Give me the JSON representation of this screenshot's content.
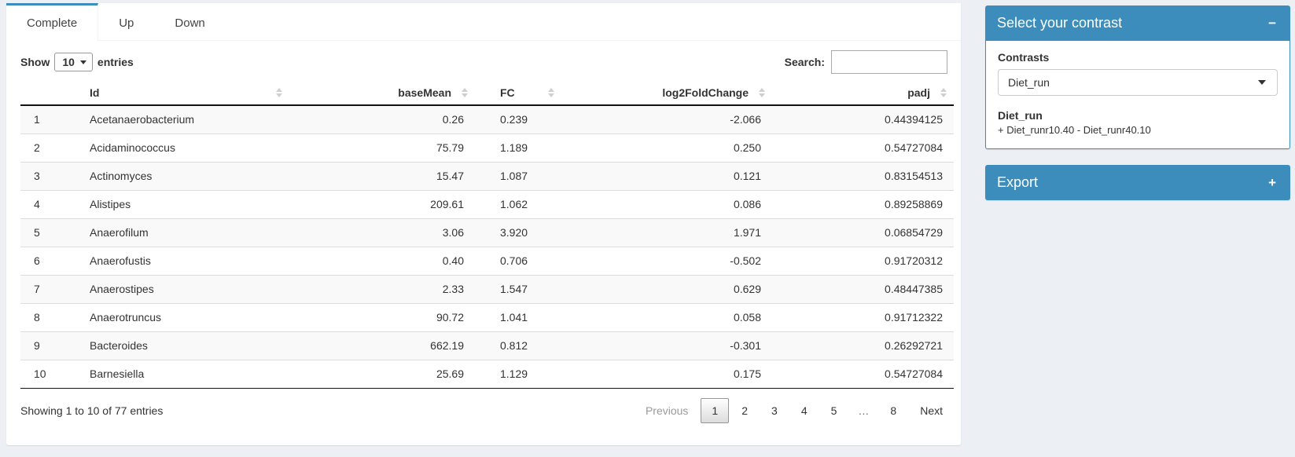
{
  "tabs": [
    {
      "label": "Complete",
      "active": true
    },
    {
      "label": "Up",
      "active": false
    },
    {
      "label": "Down",
      "active": false
    }
  ],
  "table_controls": {
    "show_label": "Show",
    "page_length": "10",
    "entries_label": "entries",
    "search_label": "Search:",
    "search_value": ""
  },
  "table": {
    "columns": [
      "Id",
      "baseMean",
      "FC",
      "log2FoldChange",
      "padj"
    ],
    "rows": [
      {
        "n": "1",
        "id": "Acetanaerobacterium",
        "baseMean": "0.26",
        "fc": "0.239",
        "log2fc": "-2.066",
        "padj": "0.44394125"
      },
      {
        "n": "2",
        "id": "Acidaminococcus",
        "baseMean": "75.79",
        "fc": "1.189",
        "log2fc": "0.250",
        "padj": "0.54727084"
      },
      {
        "n": "3",
        "id": "Actinomyces",
        "baseMean": "15.47",
        "fc": "1.087",
        "log2fc": "0.121",
        "padj": "0.83154513"
      },
      {
        "n": "4",
        "id": "Alistipes",
        "baseMean": "209.61",
        "fc": "1.062",
        "log2fc": "0.086",
        "padj": "0.89258869"
      },
      {
        "n": "5",
        "id": "Anaerofilum",
        "baseMean": "3.06",
        "fc": "3.920",
        "log2fc": "1.971",
        "padj": "0.06854729"
      },
      {
        "n": "6",
        "id": "Anaerofustis",
        "baseMean": "0.40",
        "fc": "0.706",
        "log2fc": "-0.502",
        "padj": "0.91720312"
      },
      {
        "n": "7",
        "id": "Anaerostipes",
        "baseMean": "2.33",
        "fc": "1.547",
        "log2fc": "0.629",
        "padj": "0.48447385"
      },
      {
        "n": "8",
        "id": "Anaerotruncus",
        "baseMean": "90.72",
        "fc": "1.041",
        "log2fc": "0.058",
        "padj": "0.91712322"
      },
      {
        "n": "9",
        "id": "Bacteroides",
        "baseMean": "662.19",
        "fc": "0.812",
        "log2fc": "-0.301",
        "padj": "0.26292721"
      },
      {
        "n": "10",
        "id": "Barnesiella",
        "baseMean": "25.69",
        "fc": "1.129",
        "log2fc": "0.175",
        "padj": "0.54727084"
      }
    ],
    "info": "Showing 1 to 10 of 77 entries"
  },
  "pagination": {
    "previous": "Previous",
    "pages": [
      "1",
      "2",
      "3",
      "4",
      "5",
      "…",
      "8"
    ],
    "active": "1",
    "next": "Next"
  },
  "contrast_box": {
    "title": "Select your contrast",
    "collapse_icon": "−",
    "contrasts_label": "Contrasts",
    "selected_contrast": "Diet_run",
    "contrast_name": "Diet_run",
    "contrast_formula": "+ Diet_runr10.40 - Diet_runr40.10"
  },
  "export_box": {
    "title": "Export",
    "expand_icon": "+"
  },
  "colors": {
    "primary": "#3c8dbc",
    "page_bg": "#ecf0f5",
    "stripe": "#f9f9f9"
  }
}
